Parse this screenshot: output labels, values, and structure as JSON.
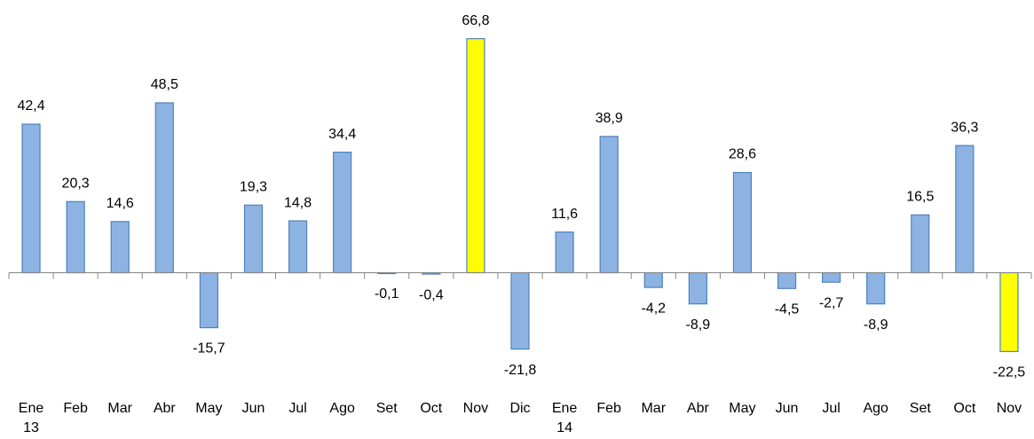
{
  "chart_data": {
    "type": "bar",
    "categories": [
      "Ene\n13",
      "Feb",
      "Mar",
      "Abr",
      "May",
      "Jun",
      "Jul",
      "Ago",
      "Set",
      "Oct",
      "Nov",
      "Dic",
      "Ene\n14",
      "Feb",
      "Mar",
      "Abr",
      "May",
      "Jun",
      "Jul",
      "Ago",
      "Set",
      "Oct",
      "Nov"
    ],
    "values": [
      42.4,
      20.3,
      14.6,
      48.5,
      -15.7,
      19.3,
      14.8,
      34.4,
      -0.1,
      -0.4,
      66.8,
      -21.8,
      11.6,
      38.9,
      -4.2,
      -8.9,
      28.6,
      -4.5,
      -2.7,
      -8.9,
      16.5,
      36.3,
      -22.5
    ],
    "value_labels": [
      "42,4",
      "20,3",
      "14,6",
      "48,5",
      "-15,7",
      "19,3",
      "14,8",
      "34,4",
      "-0,1",
      "-0,4",
      "66,8",
      "-21,8",
      "11,6",
      "38,9",
      "-4,2",
      "-8,9",
      "28,6",
      "-4,5",
      "-2,7",
      "-8,9",
      "16,5",
      "36,3",
      "-22,5"
    ],
    "colors": [
      "#8db3e2",
      "#8db3e2",
      "#8db3e2",
      "#8db3e2",
      "#8db3e2",
      "#8db3e2",
      "#8db3e2",
      "#8db3e2",
      "#8db3e2",
      "#8db3e2",
      "#ffff00",
      "#8db3e2",
      "#8db3e2",
      "#8db3e2",
      "#8db3e2",
      "#8db3e2",
      "#8db3e2",
      "#8db3e2",
      "#8db3e2",
      "#8db3e2",
      "#8db3e2",
      "#8db3e2",
      "#ffff00"
    ],
    "ylim": [
      -30,
      70
    ]
  }
}
